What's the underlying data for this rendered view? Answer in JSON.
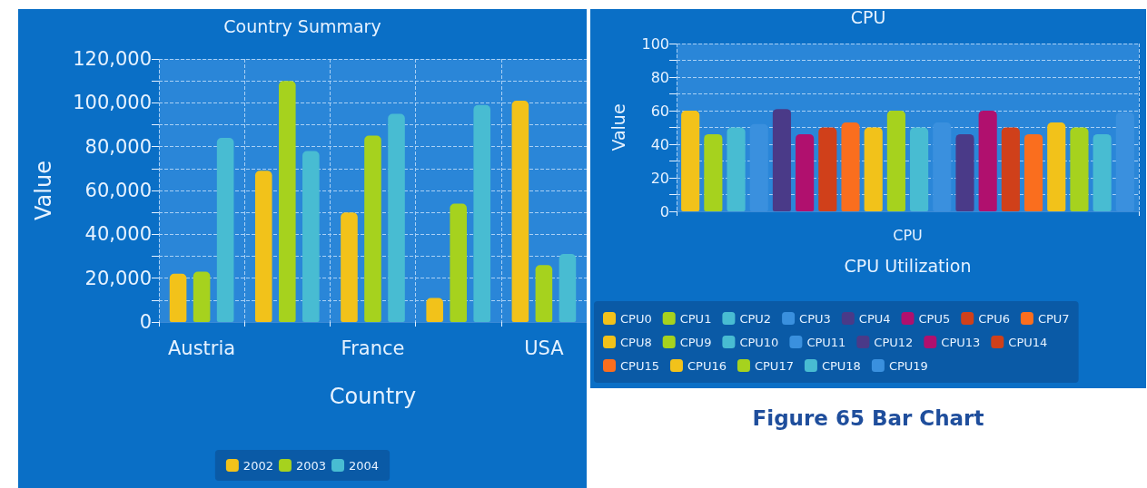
{
  "chart_data": [
    {
      "type": "bar",
      "title": "Country Summary",
      "xlabel": "Country",
      "ylabel": "Value",
      "categories": [
        "Austria",
        null,
        "France",
        null,
        "USA"
      ],
      "series": [
        {
          "name": "2002",
          "color": "#f2c21a",
          "values": [
            22000,
            69000,
            50000,
            11000,
            101000
          ]
        },
        {
          "name": "2003",
          "color": "#a6d21e",
          "values": [
            23000,
            110000,
            85000,
            54000,
            26000
          ]
        },
        {
          "name": "2004",
          "color": "#48bcd2",
          "values": [
            84000,
            78000,
            95000,
            99000,
            31000
          ]
        }
      ],
      "ylim": [
        0,
        120000
      ],
      "yticks": [
        0,
        {
          "value": 10000,
          "label": null
        },
        {
          "value": 20000,
          "label": "20,000"
        },
        {
          "value": 30000,
          "label": null
        },
        {
          "value": 40000,
          "label": "40,000"
        },
        {
          "value": 50000,
          "label": null
        },
        {
          "value": 60000,
          "label": "60,000"
        },
        {
          "value": 70000,
          "label": null
        },
        {
          "value": 80000,
          "label": "80,000"
        },
        {
          "value": 90000,
          "label": null
        },
        {
          "value": 100000,
          "label": "100,000"
        },
        {
          "value": 110000,
          "label": null
        },
        {
          "value": 120000,
          "label": "120,000"
        }
      ],
      "grid": true,
      "legend": "bottom"
    },
    {
      "type": "bar",
      "title": "CPU",
      "xlabel": "CPU Utilization",
      "ylabel": "Value",
      "categories": [
        "CPU"
      ],
      "series": [
        {
          "name": "CPU0",
          "color": "#f2c21a",
          "values": [
            60
          ]
        },
        {
          "name": "CPU1",
          "color": "#a6d21e",
          "values": [
            46
          ]
        },
        {
          "name": "CPU2",
          "color": "#48bcd2",
          "values": [
            50
          ]
        },
        {
          "name": "CPU3",
          "color": "#3a90de",
          "values": [
            52
          ]
        },
        {
          "name": "CPU4",
          "color": "#4a3a88",
          "values": [
            61
          ]
        },
        {
          "name": "CPU5",
          "color": "#b0106e",
          "values": [
            46
          ]
        },
        {
          "name": "CPU6",
          "color": "#d0401a",
          "values": [
            50
          ]
        },
        {
          "name": "CPU7",
          "color": "#fa6e1e",
          "values": [
            53
          ]
        },
        {
          "name": "CPU8",
          "color": "#f2c21a",
          "values": [
            50
          ]
        },
        {
          "name": "CPU9",
          "color": "#a6d21e",
          "values": [
            60
          ]
        },
        {
          "name": "CPU10",
          "color": "#48bcd2",
          "values": [
            50
          ]
        },
        {
          "name": "CPU11",
          "color": "#3a90de",
          "values": [
            53
          ]
        },
        {
          "name": "CPU12",
          "color": "#4a3a88",
          "values": [
            46
          ]
        },
        {
          "name": "CPU13",
          "color": "#b0106e",
          "values": [
            60
          ]
        },
        {
          "name": "CPU14",
          "color": "#d0401a",
          "values": [
            50
          ]
        },
        {
          "name": "CPU15",
          "color": "#fa6e1e",
          "values": [
            46
          ]
        },
        {
          "name": "CPU16",
          "color": "#f2c21a",
          "values": [
            53
          ]
        },
        {
          "name": "CPU17",
          "color": "#a6d21e",
          "values": [
            50
          ]
        },
        {
          "name": "CPU18",
          "color": "#48bcd2",
          "values": [
            46
          ]
        },
        {
          "name": "CPU19",
          "color": "#3a90de",
          "values": [
            59
          ]
        }
      ],
      "ylim": [
        0,
        100
      ],
      "yticks": [
        0,
        {
          "value": 10,
          "label": null
        },
        20,
        {
          "value": 30,
          "label": null
        },
        40,
        {
          "value": 50,
          "label": null
        },
        60,
        {
          "value": 70,
          "label": null
        },
        80,
        {
          "value": 90,
          "label": null
        },
        100
      ],
      "grid": true,
      "legend": "bottom",
      "annotations": [
        "Figure 65 Bar Chart"
      ]
    }
  ]
}
